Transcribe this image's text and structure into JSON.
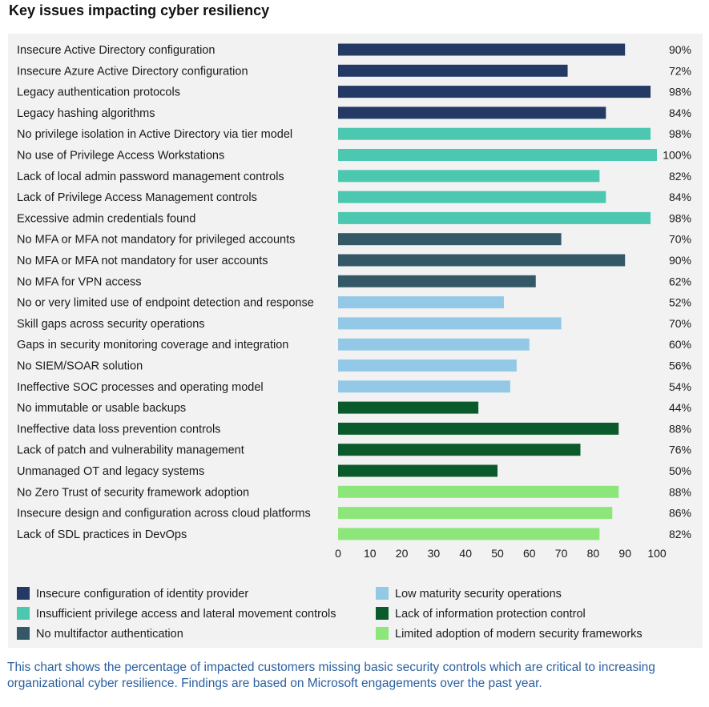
{
  "title": "Key issues impacting cyber resiliency",
  "caption": "This chart shows the percentage of impacted customers missing basic security controls which are critical to increasing organizational cyber resilience. Findings are based on Microsoft engagements over the past year.",
  "colors": {
    "identity": "#243a64",
    "privilege": "#4cc7b0",
    "mfa": "#345866",
    "secops": "#93c8e6",
    "infoprot": "#0b5a2b",
    "frameworks": "#8de67a",
    "panel_bg": "#f2f2f2",
    "caption": "#2b5f9e"
  },
  "chart_data": {
    "type": "bar",
    "orientation": "horizontal",
    "xlim": [
      0,
      100
    ],
    "xticks": [
      0,
      10,
      20,
      30,
      40,
      50,
      60,
      70,
      80,
      90,
      100
    ],
    "value_suffix": "%",
    "grid": false,
    "legend_position": "bottom",
    "groups": [
      {
        "key": "identity",
        "name": "Insecure configuration of identity provider"
      },
      {
        "key": "privilege",
        "name": "Insufficient privilege access and lateral movement controls"
      },
      {
        "key": "mfa",
        "name": "No multifactor authentication"
      },
      {
        "key": "secops",
        "name": "Low maturity security operations"
      },
      {
        "key": "infoprot",
        "name": "Lack of information protection control"
      },
      {
        "key": "frameworks",
        "name": "Limited adoption of modern security frameworks"
      }
    ],
    "bars": [
      {
        "label": "Insecure Active Directory configuration",
        "value": 90,
        "group": "identity"
      },
      {
        "label": "Insecure Azure Active Directory configuration",
        "value": 72,
        "group": "identity"
      },
      {
        "label": "Legacy authentication protocols",
        "value": 98,
        "group": "identity"
      },
      {
        "label": "Legacy hashing algorithms",
        "value": 84,
        "group": "identity"
      },
      {
        "label": "No privilege isolation in Active Directory via tier model",
        "value": 98,
        "group": "privilege"
      },
      {
        "label": "No use of Privilege Access Workstations",
        "value": 100,
        "group": "privilege"
      },
      {
        "label": "Lack of local admin password management controls",
        "value": 82,
        "group": "privilege"
      },
      {
        "label": "Lack of Privilege Access Management controls",
        "value": 84,
        "group": "privilege"
      },
      {
        "label": "Excessive admin credentials found",
        "value": 98,
        "group": "privilege"
      },
      {
        "label": "No MFA or MFA not mandatory for privileged accounts",
        "value": 70,
        "group": "mfa"
      },
      {
        "label": "No MFA or MFA not mandatory for user accounts",
        "value": 90,
        "group": "mfa"
      },
      {
        "label": "No MFA for VPN access",
        "value": 62,
        "group": "mfa"
      },
      {
        "label": "No or very limited use of endpoint detection and response",
        "value": 52,
        "group": "secops"
      },
      {
        "label": "Skill gaps across security operations",
        "value": 70,
        "group": "secops"
      },
      {
        "label": "Gaps in security monitoring coverage and integration",
        "value": 60,
        "group": "secops"
      },
      {
        "label": "No SIEM/SOAR solution",
        "value": 56,
        "group": "secops"
      },
      {
        "label": "Ineffective SOC processes and operating model",
        "value": 54,
        "group": "secops"
      },
      {
        "label": "No immutable or usable backups",
        "value": 44,
        "group": "infoprot"
      },
      {
        "label": "Ineffective data loss prevention controls",
        "value": 88,
        "group": "infoprot"
      },
      {
        "label": "Lack of patch and vulnerability management",
        "value": 76,
        "group": "infoprot"
      },
      {
        "label": "Unmanaged OT and legacy systems",
        "value": 50,
        "group": "infoprot"
      },
      {
        "label": "No Zero Trust of security framework adoption",
        "value": 88,
        "group": "frameworks"
      },
      {
        "label": "Insecure design and configuration across cloud platforms",
        "value": 86,
        "group": "frameworks"
      },
      {
        "label": "Lack of SDL practices in DevOps",
        "value": 82,
        "group": "frameworks"
      }
    ]
  }
}
